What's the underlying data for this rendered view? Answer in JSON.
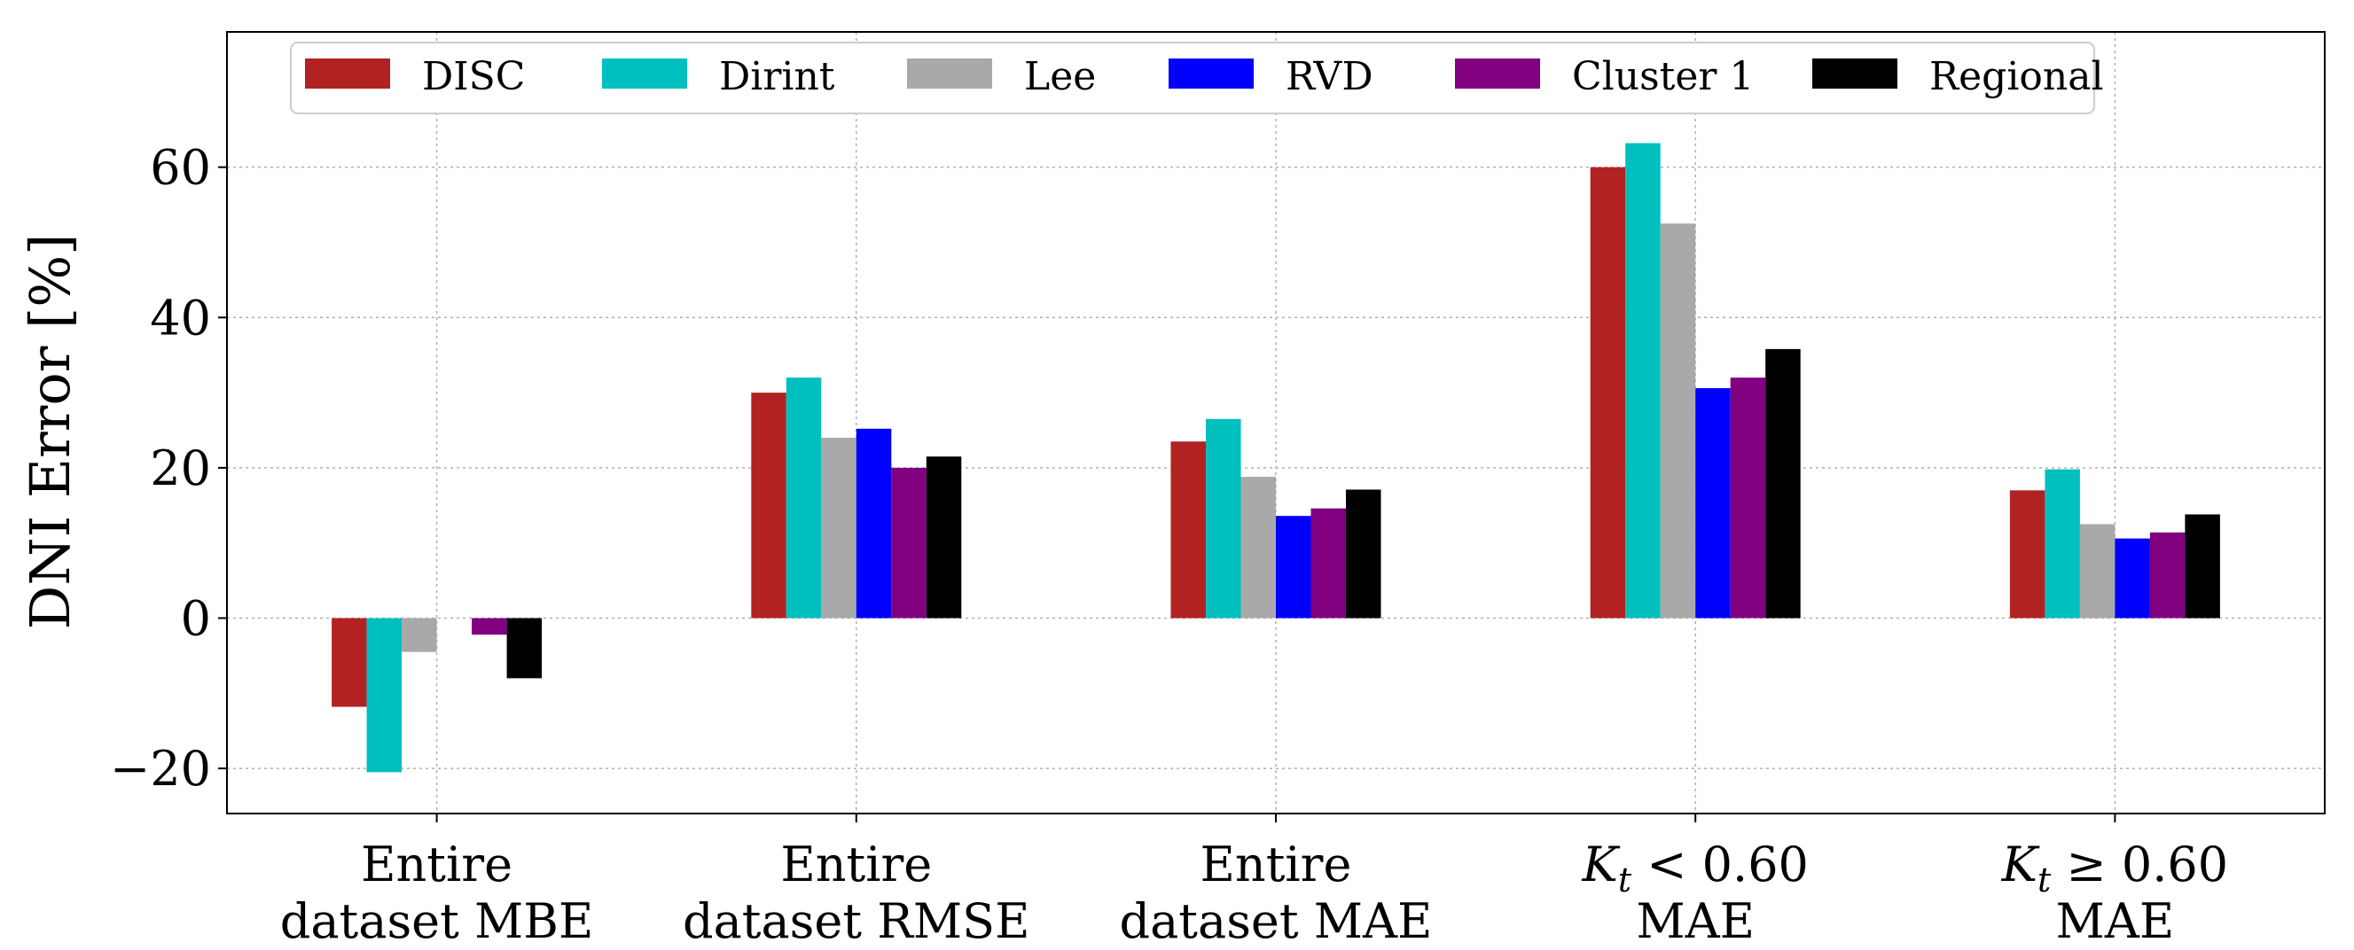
{
  "chart_data": {
    "type": "bar",
    "ylabel": "DNI Error [%]",
    "xlabel": "",
    "ylim": [
      -26,
      78
    ],
    "yticks": [
      -20,
      0,
      20,
      40,
      60
    ],
    "ytick_labels": [
      "−20",
      "0",
      "20",
      "40",
      "60"
    ],
    "grid": true,
    "legend_position": "top",
    "categories": [
      [
        "Entire",
        "dataset MBE"
      ],
      [
        "Entire",
        "dataset RMSE"
      ],
      [
        "Entire",
        "dataset MAE"
      ],
      [
        "K_t < 0.60",
        "MAE"
      ],
      [
        "K_t ≥ 0.60",
        "MAE"
      ]
    ],
    "series": [
      {
        "name": "DISC",
        "color": "#b22222",
        "values": [
          -11.8,
          30.0,
          23.5,
          60.0,
          17.0
        ]
      },
      {
        "name": "Dirint",
        "color": "#00bfbf",
        "values": [
          -20.5,
          32.0,
          26.5,
          63.2,
          19.8
        ]
      },
      {
        "name": "Lee",
        "color": "#a9a9a9",
        "values": [
          -4.5,
          24.0,
          18.8,
          52.5,
          12.5
        ]
      },
      {
        "name": "RVD",
        "color": "#0000ff",
        "values": [
          0.0,
          25.2,
          13.6,
          30.6,
          10.6
        ]
      },
      {
        "name": "Cluster 1",
        "color": "#800080",
        "values": [
          -2.2,
          20.0,
          14.6,
          32.0,
          11.4
        ]
      },
      {
        "name": "Regional",
        "color": "#000000",
        "values": [
          -8.0,
          21.5,
          17.1,
          35.8,
          13.8
        ]
      }
    ]
  }
}
